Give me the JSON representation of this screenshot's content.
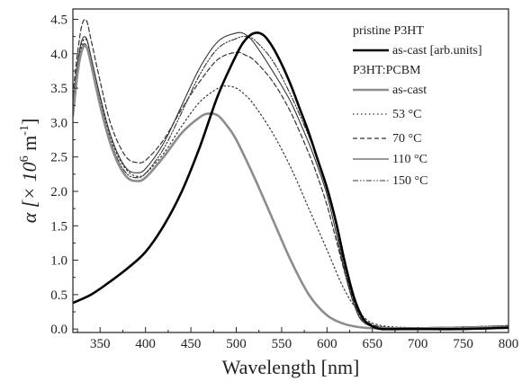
{
  "chart_data": {
    "type": "line",
    "title": "",
    "xlabel": "Wavelength [nm]",
    "ylabel_main": "α [× 10",
    "ylabel_exp": "6",
    "ylabel_unit": " m",
    "ylabel_unit_exp": "-1",
    "ylabel_close": "]",
    "xlim": [
      320,
      800
    ],
    "ylim": [
      -0.05,
      4.65
    ],
    "x_ticks": [
      350,
      400,
      450,
      500,
      550,
      600,
      650,
      700,
      750,
      800
    ],
    "x_tick_labels": [
      "350",
      "400",
      "450",
      "500",
      "550",
      "600",
      "650",
      "700",
      "750",
      "800"
    ],
    "y_ticks": [
      0.0,
      0.5,
      1.0,
      1.5,
      2.0,
      2.5,
      3.0,
      3.5,
      4.0,
      4.5
    ],
    "y_tick_labels": [
      "0.0",
      "0.5",
      "1.0",
      "1.5",
      "2.0",
      "2.5",
      "3.0",
      "3.5",
      "4.0",
      "4.5"
    ],
    "grid": false,
    "legend_position": "top-right",
    "legend_headers": [
      "pristine P3HT",
      "P3HT:PCBM"
    ],
    "series": [
      {
        "name": "as-cast [arb.units]",
        "group": "pristine P3HT",
        "color": "#000000",
        "dash": "",
        "width": 2.6,
        "x": [
          320,
          340,
          360,
          380,
          400,
          420,
          440,
          460,
          480,
          500,
          510,
          520,
          530,
          540,
          550,
          560,
          570,
          580,
          590,
          600,
          610,
          620,
          630,
          640,
          650,
          660,
          680,
          700,
          750,
          800
        ],
        "y": [
          0.38,
          0.5,
          0.68,
          0.88,
          1.12,
          1.5,
          2.0,
          2.65,
          3.4,
          3.98,
          4.2,
          4.3,
          4.27,
          4.1,
          3.85,
          3.55,
          3.2,
          2.85,
          2.45,
          2.05,
          1.55,
          0.95,
          0.45,
          0.15,
          0.04,
          0.0,
          0.0,
          0.0,
          0.0,
          0.02
        ]
      },
      {
        "name": "as-cast",
        "group": "P3HT:PCBM",
        "color": "#8c8c8c",
        "dash": "",
        "width": 2.6,
        "x": [
          320,
          325,
          330,
          335,
          340,
          350,
          360,
          370,
          380,
          390,
          400,
          420,
          440,
          460,
          470,
          480,
          490,
          500,
          520,
          540,
          560,
          580,
          600,
          620,
          640,
          660,
          700,
          750,
          800
        ],
        "y": [
          3.1,
          3.7,
          4.05,
          4.1,
          3.85,
          3.25,
          2.75,
          2.4,
          2.2,
          2.15,
          2.2,
          2.5,
          2.85,
          3.08,
          3.13,
          3.1,
          2.95,
          2.75,
          2.2,
          1.6,
          1.0,
          0.5,
          0.2,
          0.07,
          0.02,
          0.01,
          0.01,
          0.02,
          0.03
        ]
      },
      {
        "name": "53 °C",
        "group": "P3HT:PCBM",
        "color": "#333333",
        "dash": "1.5,3",
        "width": 1.2,
        "x": [
          320,
          325,
          330,
          335,
          340,
          350,
          360,
          370,
          380,
          390,
          400,
          420,
          440,
          460,
          480,
          490,
          500,
          510,
          520,
          540,
          560,
          580,
          600,
          620,
          640,
          660,
          700,
          750,
          800
        ],
        "y": [
          3.2,
          3.8,
          4.15,
          4.2,
          3.95,
          3.35,
          2.85,
          2.5,
          2.3,
          2.22,
          2.26,
          2.55,
          2.95,
          3.3,
          3.5,
          3.53,
          3.5,
          3.4,
          3.25,
          2.85,
          2.35,
          1.75,
          1.15,
          0.55,
          0.18,
          0.05,
          0.02,
          0.03,
          0.05
        ]
      },
      {
        "name": "70 °C",
        "group": "P3HT:PCBM",
        "color": "#333333",
        "dash": "5,3",
        "width": 1.2,
        "x": [
          320,
          325,
          330,
          335,
          340,
          350,
          360,
          370,
          380,
          390,
          400,
          420,
          440,
          460,
          480,
          500,
          510,
          520,
          540,
          560,
          580,
          590,
          600,
          610,
          620,
          630,
          640,
          660,
          700,
          750,
          800
        ],
        "y": [
          3.4,
          4.0,
          4.42,
          4.48,
          4.2,
          3.6,
          3.05,
          2.7,
          2.48,
          2.42,
          2.45,
          2.75,
          3.2,
          3.6,
          3.92,
          4.02,
          3.98,
          3.9,
          3.6,
          3.15,
          2.55,
          2.2,
          1.8,
          1.3,
          0.8,
          0.4,
          0.15,
          0.03,
          0.02,
          0.03,
          0.04
        ]
      },
      {
        "name": "110 °C",
        "group": "P3HT:PCBM",
        "color": "#333333",
        "dash": "",
        "width": 1.1,
        "x": [
          320,
          325,
          330,
          335,
          340,
          350,
          360,
          370,
          380,
          390,
          400,
          420,
          440,
          460,
          480,
          500,
          510,
          520,
          540,
          560,
          580,
          590,
          600,
          610,
          620,
          630,
          640,
          660,
          700,
          750,
          800
        ],
        "y": [
          3.25,
          3.85,
          4.2,
          4.22,
          3.95,
          3.38,
          2.88,
          2.53,
          2.32,
          2.27,
          2.33,
          2.7,
          3.25,
          3.8,
          4.18,
          4.3,
          4.28,
          4.15,
          3.75,
          3.3,
          2.7,
          2.35,
          1.95,
          1.4,
          0.8,
          0.35,
          0.1,
          0.02,
          0.02,
          0.03,
          0.04
        ]
      },
      {
        "name": "150 °C",
        "group": "P3HT:PCBM",
        "color": "#333333",
        "dash": "6,2,1.5,2,1.5,2",
        "width": 1.1,
        "x": [
          320,
          325,
          330,
          335,
          340,
          350,
          360,
          370,
          380,
          390,
          400,
          420,
          440,
          460,
          480,
          500,
          510,
          520,
          540,
          560,
          580,
          590,
          600,
          610,
          620,
          630,
          640,
          660,
          700,
          750,
          800
        ],
        "y": [
          3.15,
          3.75,
          4.1,
          4.12,
          3.88,
          3.3,
          2.8,
          2.45,
          2.25,
          2.2,
          2.26,
          2.62,
          3.15,
          3.7,
          4.08,
          4.22,
          4.25,
          4.2,
          3.9,
          3.4,
          2.8,
          2.45,
          2.05,
          1.5,
          0.85,
          0.4,
          0.12,
          0.03,
          0.02,
          0.03,
          0.05
        ]
      }
    ]
  }
}
